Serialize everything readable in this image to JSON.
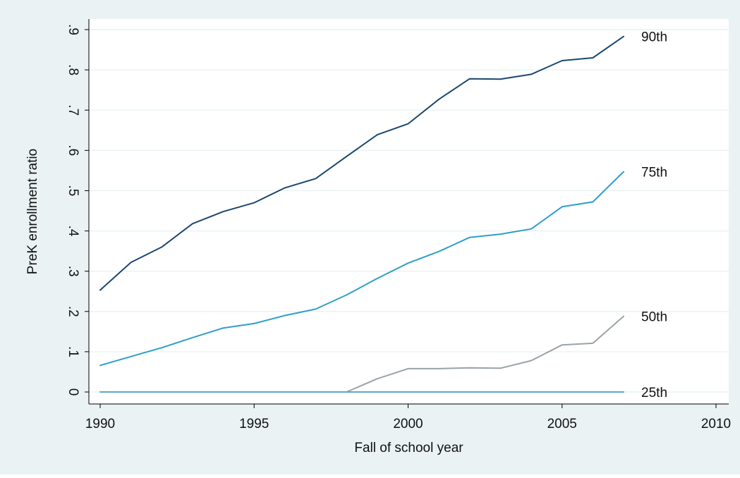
{
  "chart_data": {
    "type": "line",
    "title": "",
    "xlabel": "Fall of school year",
    "ylabel": "PreK enrollment ratio",
    "xlim": [
      1990,
      2010
    ],
    "ylim": [
      0,
      0.9
    ],
    "x_ticks": [
      1990,
      1995,
      2000,
      2005,
      2010
    ],
    "x_tick_labels": [
      "1990",
      "1995",
      "2000",
      "2005",
      "2010"
    ],
    "y_ticks": [
      0,
      0.1,
      0.2,
      0.3,
      0.4,
      0.5,
      0.6,
      0.7,
      0.8,
      0.9
    ],
    "y_tick_labels": [
      "0",
      ".1",
      ".2",
      ".3",
      ".4",
      ".5",
      ".6",
      ".7",
      ".8",
      ".9"
    ],
    "grid": true,
    "legend": "none (series labeled at line ends)",
    "colors": {
      "outer_background": "#eaf2f3",
      "plot_background": "#ffffff",
      "grid": "#eaf2f3"
    },
    "x": [
      1990,
      1991,
      1992,
      1993,
      1994,
      1995,
      1996,
      1997,
      1998,
      1999,
      2000,
      2001,
      2002,
      2003,
      2004,
      2005,
      2006,
      2007
    ],
    "series": [
      {
        "name": "90th",
        "color": "#1a476f",
        "values": [
          0.253,
          0.322,
          0.36,
          0.418,
          0.448,
          0.47,
          0.507,
          0.53,
          0.585,
          0.639,
          0.666,
          0.727,
          0.778,
          0.777,
          0.789,
          0.823,
          0.83,
          0.883
        ]
      },
      {
        "name": "75th",
        "color": "#2d9fc9",
        "values": [
          0.066,
          0.088,
          0.11,
          0.135,
          0.159,
          0.17,
          0.19,
          0.206,
          0.241,
          0.282,
          0.32,
          0.349,
          0.384,
          0.392,
          0.405,
          0.46,
          0.472,
          0.547
        ]
      },
      {
        "name": "50th",
        "color": "#9aa3a8",
        "values": [
          0,
          0,
          0,
          0,
          0,
          0,
          0,
          0,
          0,
          0.033,
          0.058,
          0.058,
          0.06,
          0.059,
          0.078,
          0.117,
          0.121,
          0.188
        ]
      },
      {
        "name": "25th",
        "color": "#5aa9c8",
        "values": [
          0,
          0,
          0,
          0,
          0,
          0,
          0,
          0,
          0,
          0,
          0,
          0,
          0,
          0,
          0,
          0,
          0,
          0
        ]
      }
    ]
  }
}
